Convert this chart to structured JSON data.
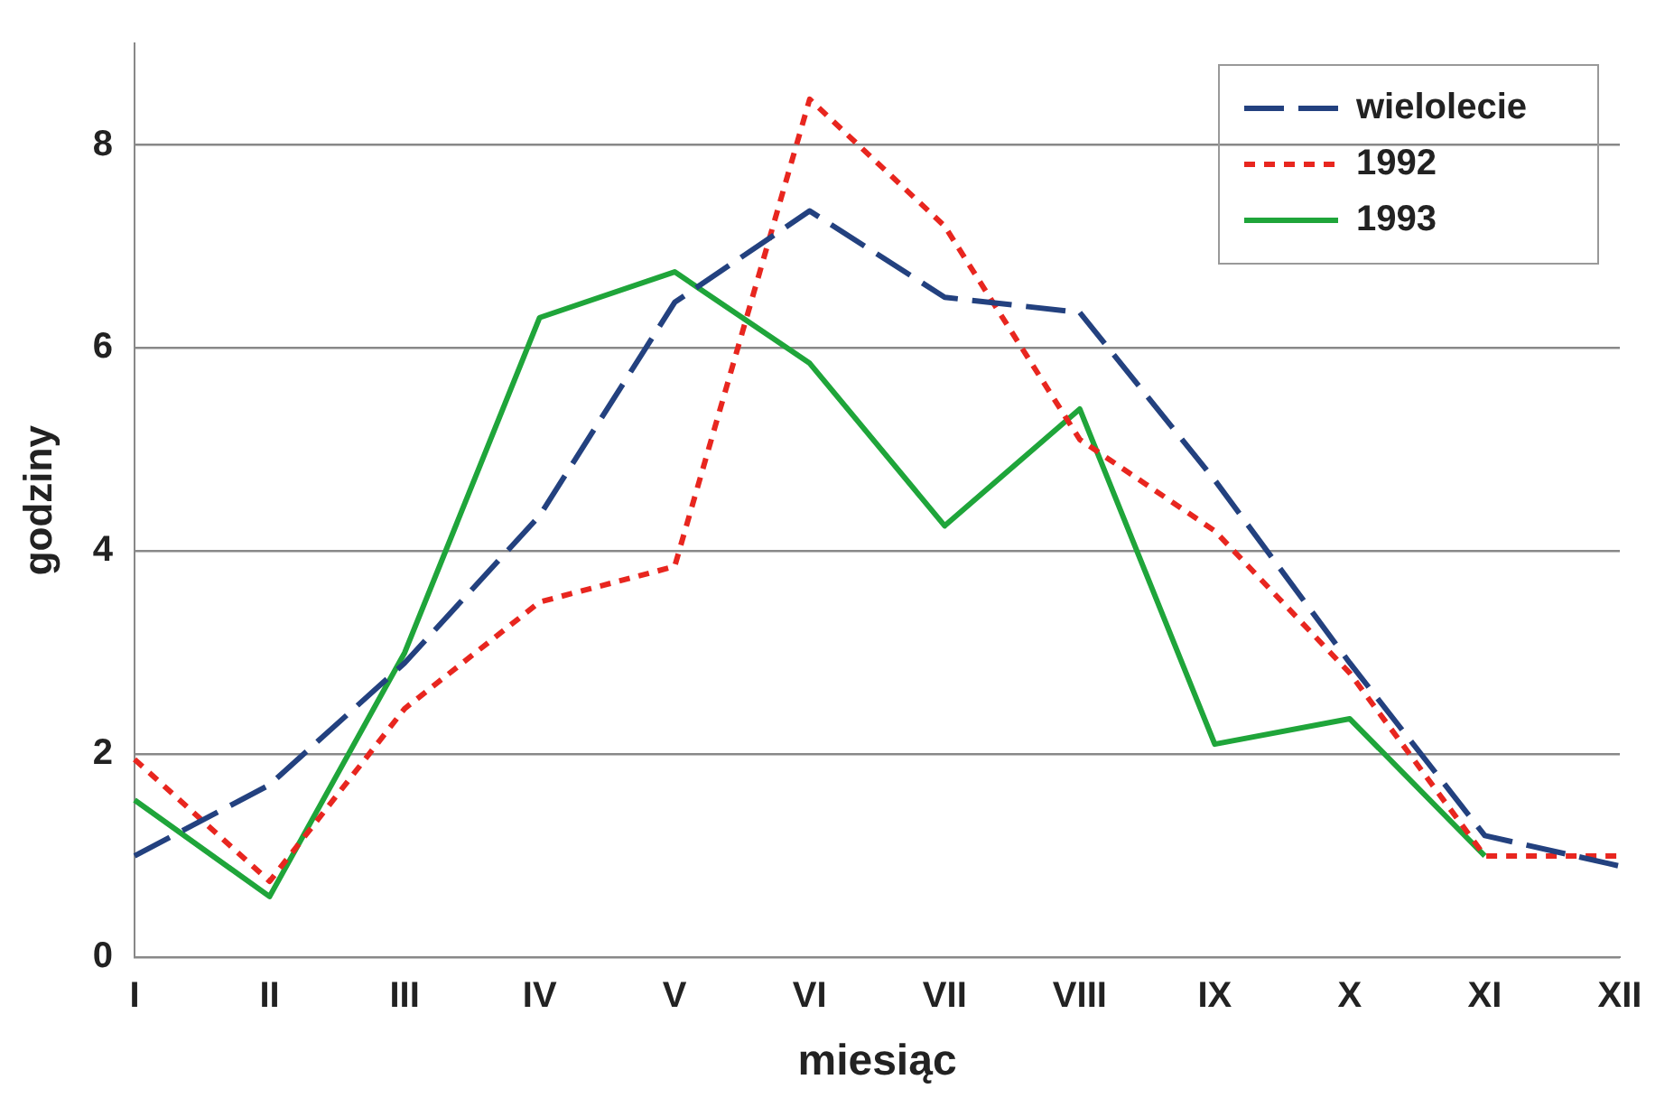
{
  "chart_data": {
    "type": "line",
    "xlabel": "miesiąc",
    "ylabel": "godziny",
    "categories": [
      "I",
      "II",
      "III",
      "IV",
      "V",
      "VI",
      "VII",
      "VIII",
      "IX",
      "X",
      "XI",
      "XII"
    ],
    "ylim": [
      0,
      9
    ],
    "yticks": [
      0,
      2,
      4,
      6,
      8
    ],
    "grid": "y",
    "legend": "top right",
    "marker": "none",
    "series": [
      {
        "name": "wielolecie",
        "color": "#23417f",
        "line_style": "dashed",
        "values": [
          1.0,
          1.7,
          2.9,
          4.35,
          6.45,
          7.35,
          6.5,
          6.35,
          4.7,
          2.9,
          1.2,
          0.9
        ]
      },
      {
        "name": "1992",
        "color": "#e8261f",
        "line_style": "dotted",
        "values": [
          1.95,
          0.75,
          2.45,
          3.5,
          3.85,
          8.45,
          7.2,
          5.1,
          4.2,
          2.8,
          1.0,
          1.0
        ]
      },
      {
        "name": "1993",
        "color": "#1fa53a",
        "line_style": "solid",
        "values": [
          1.55,
          0.6,
          3.0,
          6.3,
          6.75,
          5.85,
          4.25,
          5.4,
          2.1,
          2.35,
          1.0,
          null
        ]
      }
    ]
  }
}
